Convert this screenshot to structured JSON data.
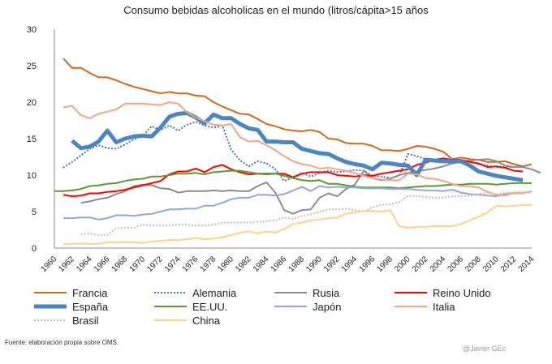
{
  "chart_data": {
    "type": "line",
    "title": "Consumo bebidas alcoholicas en el mundo (litros/cápita>15 años",
    "xlabel": "",
    "ylabel": "",
    "ylim": [
      0,
      30
    ],
    "yticks": [
      0,
      5,
      10,
      15,
      20,
      25,
      30
    ],
    "xlim": [
      1960,
      2014
    ],
    "xticks": [
      1960,
      1962,
      1964,
      1966,
      1968,
      1970,
      1972,
      1974,
      1976,
      1978,
      1980,
      1982,
      1984,
      1986,
      1988,
      1990,
      1992,
      1994,
      1996,
      1998,
      2000,
      2002,
      2004,
      2006,
      2008,
      2010,
      2012,
      2014
    ],
    "legend_position": "bottom",
    "series": [
      {
        "name": "Francia",
        "color": "#D2691E",
        "dash": "solid",
        "width": 2,
        "start": 1961,
        "values": [
          26,
          24.7,
          24.7,
          24,
          23.4,
          23.4,
          23,
          22.5,
          22.1,
          21.8,
          21.5,
          21.2,
          21.4,
          21.2,
          21.2,
          20.9,
          20.8,
          20,
          19.4,
          18.9,
          18.4,
          18.3,
          17.7,
          17,
          16.7,
          16.3,
          16.1,
          16,
          16.2,
          15.9,
          15,
          14.9,
          14.4,
          14.3,
          14.3,
          14,
          13.4,
          13.4,
          13.3,
          13.6,
          14,
          13.9,
          13.6,
          13.2,
          12.2,
          12.4,
          12.2,
          12.1,
          11.8,
          11.8,
          11.9,
          11.5,
          11.2,
          11.5
        ]
      },
      {
        "name": "Alemania",
        "color": "#4472C4",
        "dash": "dot",
        "width": 2,
        "start": 1961,
        "values": [
          11,
          11.8,
          12.7,
          13.6,
          14.1,
          13.7,
          13.6,
          14.2,
          14.9,
          15.4,
          16.7,
          16.2,
          16.8,
          16.1,
          16.9,
          17.3,
          16.8,
          16.5,
          16.8,
          13.5,
          12,
          11.2,
          11.9,
          11.6,
          10.8,
          9.2,
          9.7,
          10.3,
          9.8,
          10.3,
          10.6,
          10.4,
          10.5,
          10.7,
          10.6,
          9.9,
          9.8,
          9.6,
          9.9,
          12.9,
          12.6,
          12.2,
          12,
          11.8,
          11.6,
          11.8,
          11.9,
          11.5,
          11.3,
          11.1,
          11.1,
          11.1,
          11.3
        ]
      },
      {
        "name": "Rusia",
        "color": "#8C8C8C",
        "dash": "solid",
        "width": 2,
        "start": 1963,
        "values": [
          6.2,
          6.4,
          6.7,
          6.9,
          7.4,
          7.8,
          8.5,
          8.7,
          8.6,
          8.2,
          8.1,
          7.6,
          7.8,
          7.8,
          7.8,
          7.9,
          7.8,
          7.9,
          7.8,
          7.8,
          8.5,
          9,
          7.6,
          5.2,
          4.7,
          5.2,
          5.3,
          6.9,
          7.5,
          7.1,
          8.1,
          8.7,
          10.6,
          9.6,
          9.3,
          9.5,
          10,
          10.3,
          10.5,
          10.7,
          10.9,
          11.2,
          11.6,
          11.8,
          12,
          12.1,
          12.2,
          11.9,
          11.3,
          11.1,
          11.1,
          10.8,
          10.3
        ]
      },
      {
        "name": "Reino Unido",
        "color": "#FF0000",
        "dash": "solid",
        "width": 2,
        "start": 1961,
        "values": [
          7.3,
          7.1,
          7.2,
          7.5,
          7.5,
          7.7,
          7.8,
          8,
          8.3,
          8.6,
          8.9,
          9.2,
          10.1,
          10.5,
          10.5,
          10.9,
          10.4,
          11.1,
          11.4,
          10.8,
          10.4,
          10.1,
          10.2,
          10.2,
          10.2,
          10.2,
          9.7,
          10.2,
          10.4,
          10.4,
          10.4,
          10,
          9.9,
          9.8,
          10,
          9.9,
          10.2,
          10.4,
          10.6,
          10.8,
          11.4,
          11.7,
          12.1,
          12.3,
          12.1,
          12.1,
          11.8,
          11.6,
          11.1,
          11.2,
          11,
          10.6,
          10.5
        ]
      },
      {
        "name": "España",
        "color": "#4A86BF",
        "dash": "solid",
        "width": 5,
        "start": 1962,
        "values": [
          14.7,
          13.7,
          13.9,
          14.6,
          16.1,
          14.5,
          15,
          15.3,
          15.4,
          15.3,
          16.5,
          18,
          18.4,
          18.5,
          17.9,
          17.1,
          18.3,
          17.8,
          17.8,
          17,
          16.4,
          16.2,
          14.6,
          14.6,
          14.5,
          14.5,
          13.6,
          13.3,
          13,
          12.9,
          12.3,
          11.8,
          11.5,
          11.3,
          10.8,
          11.7,
          11.6,
          11.4,
          11.3,
          10,
          12.1,
          12,
          11.9,
          11.9,
          11.9,
          11.3,
          10.5,
          10.2,
          9.9,
          9.7,
          9.5,
          9.3
        ]
      },
      {
        "name": "EE.UU.",
        "color": "#5B9A2F",
        "dash": "solid",
        "width": 2,
        "start": 1960,
        "values": [
          7.8,
          7.8,
          7.9,
          8.1,
          8.5,
          8.6,
          8.8,
          8.9,
          9.2,
          9.4,
          9.5,
          9.8,
          9.8,
          10,
          10.2,
          10.2,
          10.3,
          10.1,
          10.4,
          10.5,
          10.6,
          10.6,
          10.4,
          10.2,
          10.1,
          10.2,
          9.9,
          9.6,
          9.3,
          9.2,
          9.3,
          8.8,
          8.8,
          8.6,
          8.4,
          8.3,
          8.3,
          8.3,
          8.3,
          8.2,
          8.3,
          8.4,
          8.5,
          8.5,
          8.6,
          8.7,
          8.7,
          8.8,
          8.8,
          8.8,
          8.7,
          8.8,
          8.9,
          8.9,
          8.9
        ]
      },
      {
        "name": "Japón",
        "color": "#8FA9DC",
        "dash": "solid",
        "width": 2,
        "start": 1961,
        "values": [
          4.1,
          4.1,
          4.2,
          4.2,
          3.9,
          4.1,
          4.5,
          4.5,
          4.4,
          4.6,
          4.7,
          5,
          5.3,
          5.3,
          5.4,
          5.4,
          5.8,
          5.8,
          6.2,
          6.7,
          6.9,
          6.9,
          7.3,
          7.3,
          7.2,
          7.4,
          7.9,
          8.4,
          7.8,
          8.5,
          8.3,
          8.4,
          8.3,
          8.3,
          8.2,
          8.2,
          8.2,
          8.1,
          8.1,
          8.1,
          8,
          7.9,
          7.9,
          7.8,
          8,
          7.6,
          7.4,
          7.3,
          7.2,
          7.1,
          7.4,
          7.5,
          7.5
        ]
      },
      {
        "name": "Italia",
        "color": "#F4A582",
        "dash": "solid",
        "width": 2,
        "start": 1961,
        "values": [
          19.3,
          19.5,
          18.2,
          17.8,
          18.4,
          18.7,
          19,
          19.8,
          19.8,
          19.8,
          19.7,
          19.6,
          20,
          19.8,
          18.6,
          17.9,
          17.4,
          16.9,
          16.8,
          17,
          15.2,
          14.6,
          14.7,
          14.1,
          13.4,
          12.6,
          11.9,
          11.5,
          11.3,
          10.9,
          11,
          10.8,
          10.6,
          10.3,
          9.9,
          9.6,
          9.4,
          9.3,
          9.3,
          10.2,
          10.1,
          9.6,
          9.5,
          9.2,
          8.8,
          8.5,
          8.5,
          8.3,
          7.7,
          7.3,
          7.2,
          7.6,
          7.5,
          7.8
        ]
      },
      {
        "name": "Brasil",
        "color": "#BFBFBF",
        "dash": "dot",
        "width": 2,
        "start": 1963,
        "values": [
          1.9,
          2,
          1.8,
          1.8,
          2.7,
          2.8,
          2.8,
          3.2,
          3.1,
          3.1,
          3.1,
          3.2,
          3.2,
          3.1,
          3.1,
          3.2,
          3.5,
          3.5,
          3.5,
          3.5,
          3.6,
          3.7,
          3.8,
          4.2,
          4,
          4.4,
          4.6,
          5,
          5.3,
          5.3,
          5.4,
          5.2,
          5,
          5.6,
          5.9,
          6,
          6.3,
          7.2,
          7.1,
          7,
          6.9,
          6.9,
          7.1,
          7.1,
          7.2,
          7.4,
          7.6,
          7.4,
          7.6,
          7.6,
          7.7,
          7.6
        ]
      },
      {
        "name": "China",
        "color": "#FFD28A",
        "dash": "solid",
        "width": 2,
        "start": 1961,
        "values": [
          0.5,
          0.6,
          0.6,
          0.6,
          0.6,
          0.8,
          0.8,
          0.8,
          0.8,
          0.7,
          0.9,
          1,
          1.1,
          1.1,
          1.2,
          1.4,
          1.2,
          1.3,
          1.5,
          1.8,
          2.1,
          2.3,
          2,
          2.3,
          2.1,
          2.6,
          3.3,
          3.5,
          3.8,
          3.9,
          4.1,
          4.2,
          4.7,
          4.9,
          5.1,
          5.1,
          5,
          5.2,
          3,
          2.8,
          2.9,
          2.9,
          3,
          3,
          3,
          3.3,
          3.8,
          4.3,
          4.9,
          5.8,
          5.7,
          5.8,
          5.9,
          5.9
        ]
      }
    ]
  },
  "source": "Fuente: elaboración propia sobre OMS.",
  "credit": "@Javier GEc"
}
